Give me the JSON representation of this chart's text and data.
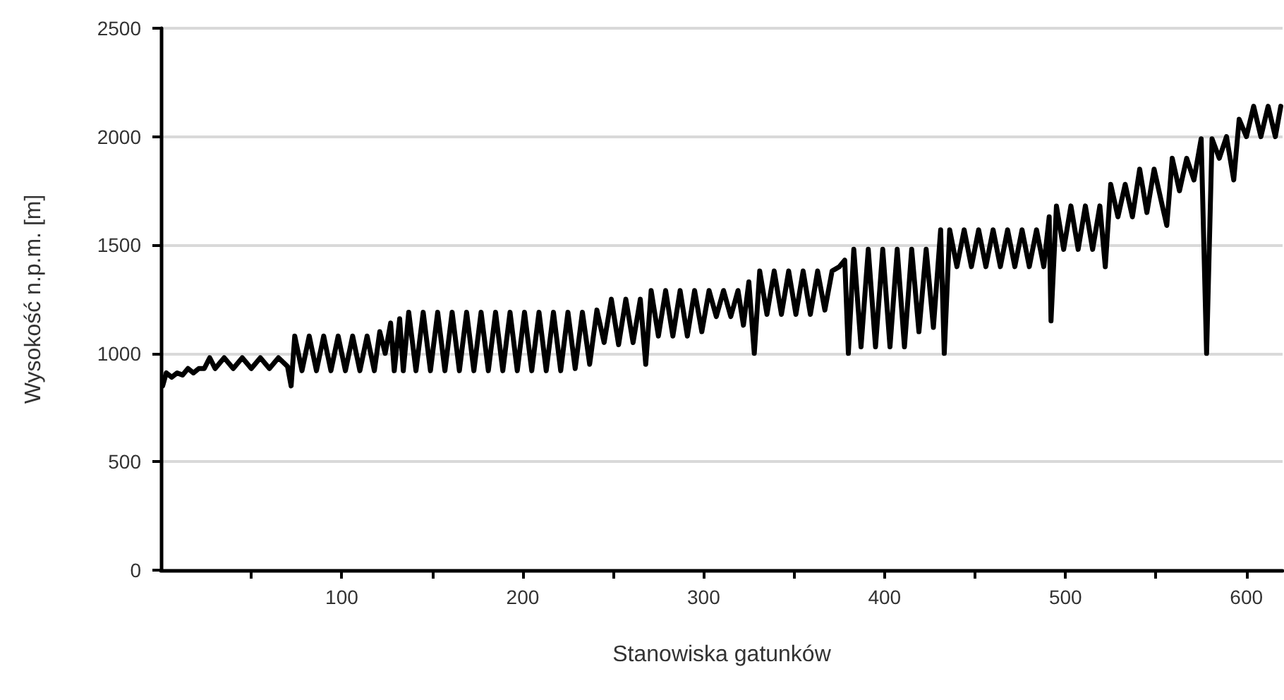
{
  "chart_data": {
    "type": "line",
    "xlabel": "Stanowiska gatunków",
    "ylabel": "Wysokość n.p.m. [m]",
    "xlim": [
      0,
      620
    ],
    "xticks": [
      {
        "value": 50,
        "label": null
      },
      100,
      {
        "value": 150,
        "label": null
      },
      200,
      {
        "value": 250,
        "label": null
      },
      300,
      {
        "value": 350,
        "label": null
      },
      400,
      {
        "value": 450,
        "label": null
      },
      500,
      {
        "value": 550,
        "label": null
      },
      600
    ],
    "ylim": [
      0,
      2500
    ],
    "yticks": [
      0,
      500,
      1000,
      1500,
      2000,
      2500
    ],
    "grid": "y",
    "marker": "none",
    "line_style": "solid",
    "series": [
      {
        "color": "#000000",
        "x": [
          1,
          3,
          6,
          9,
          12,
          15,
          18,
          21,
          24,
          27,
          30,
          35,
          40,
          45,
          50,
          55,
          60,
          65,
          70,
          72,
          74,
          78,
          82,
          86,
          90,
          94,
          98,
          102,
          106,
          110,
          114,
          118,
          121,
          124,
          127,
          129,
          132,
          134,
          137,
          141,
          145,
          149,
          153,
          157,
          161,
          165,
          169,
          173,
          177,
          181,
          185,
          189,
          193,
          197,
          201,
          205,
          209,
          213,
          217,
          221,
          225,
          229,
          233,
          237,
          241,
          245,
          249,
          253,
          257,
          261,
          265,
          268,
          271,
          275,
          279,
          283,
          287,
          291,
          295,
          299,
          303,
          307,
          311,
          315,
          319,
          322,
          325,
          328,
          331,
          335,
          339,
          343,
          347,
          351,
          355,
          359,
          363,
          367,
          371,
          375,
          378,
          380,
          383,
          387,
          391,
          395,
          399,
          403,
          407,
          411,
          415,
          419,
          423,
          427,
          431,
          433,
          436,
          440,
          444,
          448,
          452,
          456,
          460,
          464,
          468,
          472,
          476,
          480,
          484,
          488,
          491,
          492,
          495,
          499,
          503,
          507,
          511,
          515,
          519,
          522,
          525,
          529,
          533,
          537,
          541,
          545,
          549,
          553,
          556,
          559,
          563,
          567,
          571,
          575,
          578,
          581,
          585,
          589,
          593,
          596,
          600,
          604,
          608,
          612,
          616,
          619
        ],
        "values": [
          850,
          910,
          890,
          910,
          900,
          930,
          910,
          930,
          930,
          980,
          930,
          980,
          930,
          980,
          930,
          980,
          930,
          980,
          940,
          850,
          1080,
          920,
          1080,
          920,
          1080,
          920,
          1080,
          920,
          1080,
          920,
          1080,
          920,
          1100,
          1000,
          1140,
          920,
          1160,
          920,
          1190,
          920,
          1190,
          920,
          1190,
          920,
          1190,
          920,
          1190,
          920,
          1190,
          920,
          1190,
          920,
          1190,
          920,
          1190,
          920,
          1190,
          920,
          1190,
          920,
          1190,
          930,
          1190,
          950,
          1200,
          1050,
          1250,
          1040,
          1250,
          1050,
          1250,
          950,
          1290,
          1080,
          1290,
          1080,
          1290,
          1080,
          1290,
          1100,
          1290,
          1170,
          1290,
          1170,
          1290,
          1130,
          1330,
          1000,
          1380,
          1180,
          1380,
          1180,
          1380,
          1180,
          1380,
          1180,
          1380,
          1200,
          1380,
          1400,
          1430,
          1000,
          1480,
          1030,
          1480,
          1030,
          1480,
          1030,
          1480,
          1030,
          1480,
          1100,
          1480,
          1120,
          1570,
          1000,
          1570,
          1400,
          1570,
          1400,
          1570,
          1400,
          1570,
          1400,
          1570,
          1400,
          1570,
          1400,
          1570,
          1400,
          1630,
          1150,
          1680,
          1480,
          1680,
          1480,
          1680,
          1480,
          1680,
          1400,
          1780,
          1630,
          1780,
          1630,
          1850,
          1650,
          1850,
          1700,
          1590,
          1900,
          1750,
          1900,
          1800,
          1990,
          1000,
          1990,
          1900,
          2000,
          1800,
          2080,
          2000,
          2140,
          2000,
          2140,
          2000,
          2140
        ]
      }
    ]
  }
}
